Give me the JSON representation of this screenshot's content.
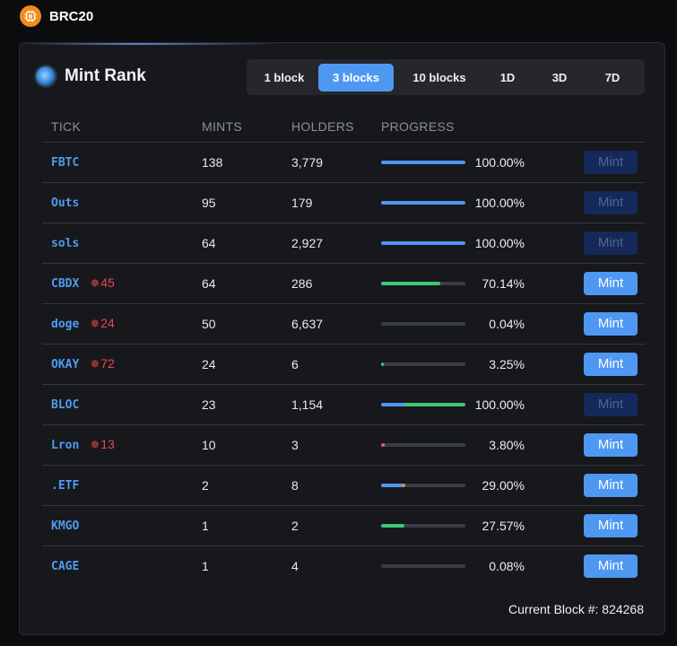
{
  "app": {
    "brand": "BRC20",
    "brand_icon": "bitcoin-chip-icon",
    "brand_color": "#f28a1c"
  },
  "card": {
    "title": "Mint Rank",
    "title_icon": "mint-orb-icon"
  },
  "tabs": [
    {
      "label": "1 block",
      "active": false
    },
    {
      "label": "3 blocks",
      "active": true
    },
    {
      "label": "10 blocks",
      "active": false
    },
    {
      "label": "1D",
      "active": false
    },
    {
      "label": "3D",
      "active": false
    },
    {
      "label": "7D",
      "active": false
    }
  ],
  "table": {
    "headers": {
      "tick": "TICK",
      "mints": "MINTS",
      "holders": "HOLDERS",
      "progress": "PROGRESS"
    },
    "rows": [
      {
        "tick": "FBTC",
        "hot": "",
        "mints": "138",
        "holders": "3,779",
        "progress": 1.0,
        "progress_label": "100.00%",
        "bar_color": "#4e98f2",
        "mint_label": "Mint",
        "mint_enabled": false
      },
      {
        "tick": "Outs",
        "hot": "",
        "mints": "95",
        "holders": "179",
        "progress": 1.0,
        "progress_label": "100.00%",
        "bar_color": "#4e98f2",
        "mint_label": "Mint",
        "mint_enabled": false
      },
      {
        "tick": "sols",
        "hot": "",
        "mints": "64",
        "holders": "2,927",
        "progress": 1.0,
        "progress_label": "100.00%",
        "bar_color": "#4e98f2",
        "mint_label": "Mint",
        "mint_enabled": false
      },
      {
        "tick": "CBDX",
        "hot": "45",
        "mints": "64",
        "holders": "286",
        "progress": 0.7014,
        "progress_label": "70.14%",
        "bar_color": "#3ec77b",
        "mint_label": "Mint",
        "mint_enabled": true
      },
      {
        "tick": "doge",
        "hot": "24",
        "mints": "50",
        "holders": "6,637",
        "progress": 0.0004,
        "progress_label": "0.04%",
        "bar_color": "#3ec77b",
        "mint_label": "Mint",
        "mint_enabled": true
      },
      {
        "tick": "OKAY",
        "hot": "72",
        "mints": "24",
        "holders": "6",
        "progress": 0.0325,
        "progress_label": "3.25%",
        "bar_color": "#3ec77b",
        "mint_label": "Mint",
        "mint_enabled": true
      },
      {
        "tick": "BLOC",
        "hot": "",
        "mints": "23",
        "holders": "1,154",
        "progress": 1.0,
        "progress_label": "100.00%",
        "bar_color": "#3ec77b",
        "bar_start_color": "#4e98f2",
        "mint_label": "Mint",
        "mint_enabled": false
      },
      {
        "tick": "Lron",
        "hot": "13",
        "mints": "10",
        "holders": "3",
        "progress": 0.038,
        "progress_label": "3.80%",
        "bar_color": "#e5606a",
        "mint_label": "Mint",
        "mint_enabled": true
      },
      {
        "tick": ".ETF",
        "hot": "",
        "mints": "2",
        "holders": "8",
        "progress": 0.29,
        "progress_label": "29.00%",
        "bar_color": "#4e98f2",
        "bar_end_color": "#f0883e",
        "mint_label": "Mint",
        "mint_enabled": true
      },
      {
        "tick": "KMGO",
        "hot": "",
        "mints": "1",
        "holders": "2",
        "progress": 0.2757,
        "progress_label": "27.57%",
        "bar_color": "#3ec77b",
        "mint_label": "Mint",
        "mint_enabled": true
      },
      {
        "tick": "CAGE",
        "hot": "",
        "mints": "1",
        "holders": "4",
        "progress": 0.0008,
        "progress_label": "0.08%",
        "bar_color": "#3ec77b",
        "mint_label": "Mint",
        "mint_enabled": true
      }
    ]
  },
  "footer": {
    "current_block": "Current Block #: 824268"
  },
  "colors": {
    "accent": "#4e98f2",
    "hot": "#e5484d",
    "tick": "#4f9cf0",
    "background": "#0b0c0e",
    "card": "#17181c"
  }
}
